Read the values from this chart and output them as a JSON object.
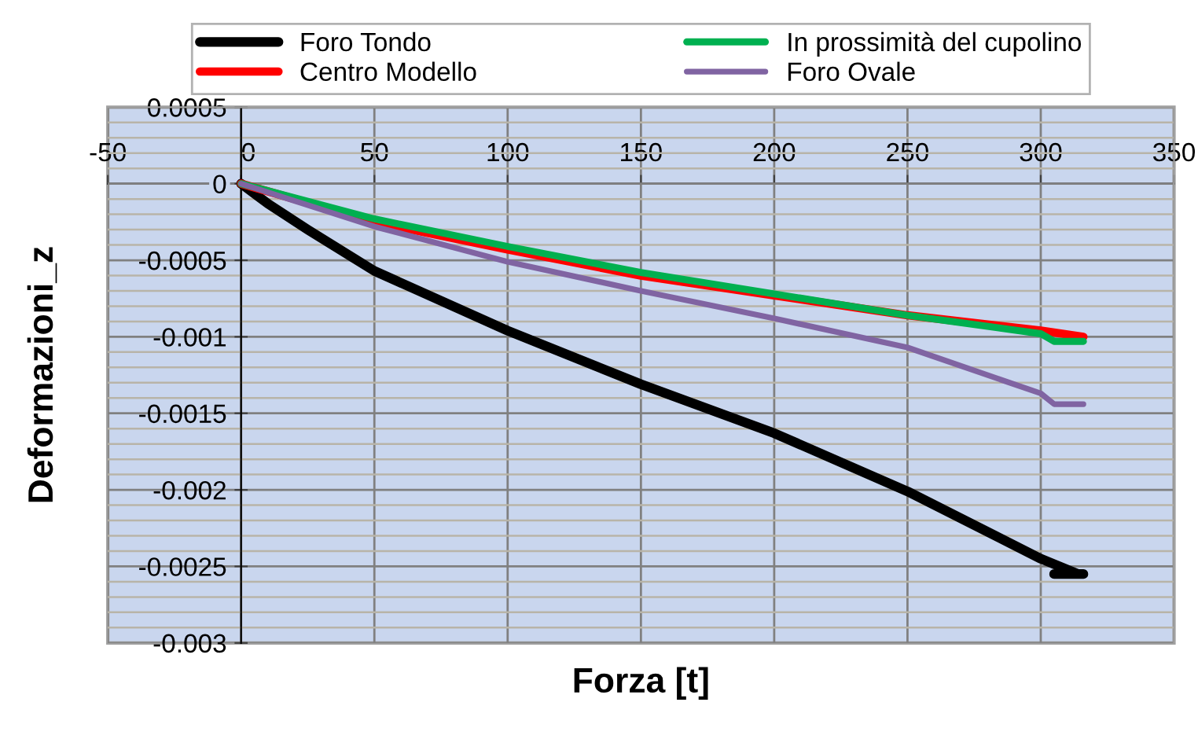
{
  "chart_data": {
    "type": "line",
    "xlabel": "Forza [t]",
    "ylabel": "Deformazioni_z",
    "xlim": [
      -50,
      350
    ],
    "xticks": [
      -50,
      0,
      50,
      100,
      150,
      200,
      250,
      300,
      350
    ],
    "ylim": [
      -0.003,
      0.0005
    ],
    "yticks": [
      -0.003,
      -0.0025,
      -0.002,
      -0.0015,
      -0.001,
      -0.0005,
      0,
      0.0005
    ],
    "grid": true,
    "legend": "top",
    "marker": "none",
    "line_style": "solid",
    "series": [
      {
        "name": "Foro Tondo",
        "color": "#000000",
        "x": [
          0,
          10,
          25,
          50,
          100,
          150,
          200,
          250,
          300,
          314,
          305,
          316
        ],
        "values": [
          0,
          -0.00013,
          -0.0003,
          -0.00057,
          -0.00096,
          -0.00131,
          -0.00163,
          -0.00201,
          -0.00245,
          -0.00255,
          -0.00255,
          -0.00255
        ]
      },
      {
        "name": "Centro Modello",
        "color": "#ff0000",
        "x": [
          0,
          50,
          100,
          150,
          200,
          250,
          300,
          316
        ],
        "values": [
          0,
          -0.00025,
          -0.00043,
          -0.0006,
          -0.00073,
          -0.00086,
          -0.00096,
          -0.001
        ]
      },
      {
        "name": "In prossimità del cupolino",
        "color": "#00b050",
        "x": [
          0,
          50,
          100,
          150,
          200,
          250,
          300,
          305,
          316
        ],
        "values": [
          0,
          -0.00023,
          -0.00041,
          -0.00058,
          -0.00072,
          -0.00086,
          -0.00098,
          -0.00103,
          -0.00103
        ]
      },
      {
        "name": "Foro Ovale",
        "color": "#8064a2",
        "x": [
          0,
          50,
          100,
          150,
          200,
          250,
          300,
          305,
          316
        ],
        "values": [
          0,
          -0.00028,
          -0.00051,
          -0.0007,
          -0.00088,
          -0.00107,
          -0.00137,
          -0.00144,
          -0.00144
        ]
      }
    ]
  }
}
